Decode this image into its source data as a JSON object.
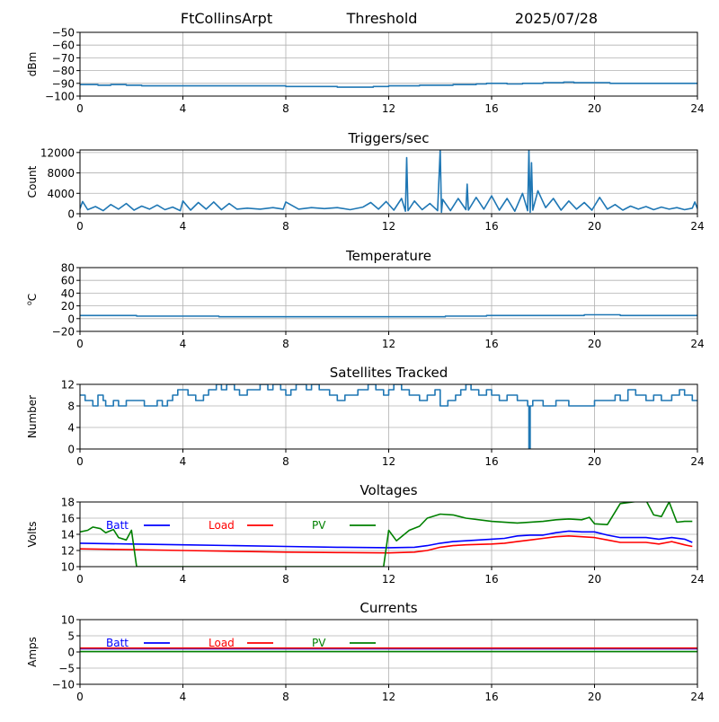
{
  "header": {
    "station": "FtCollinsArpt",
    "threshold_label": "Threshold",
    "date": "2025/07/28"
  },
  "chart_data": [
    {
      "id": "threshold",
      "type": "line",
      "title": "",
      "xlabel": "",
      "ylabel": "dBm",
      "xlim": [
        0,
        24
      ],
      "ylim": [
        -100,
        -50
      ],
      "xticks": [
        0,
        4,
        8,
        12,
        16,
        20,
        24
      ],
      "yticks": [
        -50,
        -60,
        -70,
        -80,
        -90,
        -100
      ],
      "grid": true,
      "series": [
        {
          "color": "#1f77b4",
          "kind": "step",
          "x": [
            0,
            0.7,
            1.2,
            1.8,
            2.4,
            3.0,
            4.0,
            5.0,
            6.0,
            7.0,
            8.0,
            9.0,
            10.0,
            10.6,
            11.4,
            12.0,
            12.6,
            13.2,
            14.0,
            14.5,
            15.0,
            15.4,
            15.8,
            16.2,
            16.6,
            17.2,
            17.6,
            18.0,
            18.4,
            18.8,
            19.2,
            19.6,
            20.0,
            20.6,
            21.0,
            22.0,
            23.0,
            24.0
          ],
          "y": [
            -91,
            -91.5,
            -91,
            -91.5,
            -92,
            -92,
            -92,
            -92,
            -92,
            -92,
            -92.5,
            -92.5,
            -93,
            -93,
            -92.5,
            -92,
            -92,
            -91.5,
            -91.5,
            -91,
            -91,
            -90.5,
            -90,
            -90,
            -90.5,
            -90,
            -90,
            -89.5,
            -89.5,
            -89,
            -89.5,
            -89.5,
            -89.5,
            -90,
            -90,
            -90,
            -90,
            -90
          ]
        }
      ]
    },
    {
      "id": "triggers",
      "type": "line",
      "title": "Triggers/sec",
      "xlabel": "",
      "ylabel": "Count",
      "xlim": [
        0,
        24
      ],
      "ylim": [
        0,
        12500
      ],
      "xticks": [
        0,
        4,
        8,
        12,
        16,
        20,
        24
      ],
      "yticks": [
        0,
        4000,
        8000,
        12000
      ],
      "grid": true,
      "series": [
        {
          "color": "#1f77b4",
          "kind": "line",
          "x": [
            0,
            0.1,
            0.3,
            0.6,
            0.9,
            1.2,
            1.5,
            1.8,
            2.1,
            2.4,
            2.7,
            3.0,
            3.3,
            3.6,
            3.9,
            4.0,
            4.3,
            4.6,
            4.9,
            5.2,
            5.5,
            5.8,
            6.1,
            6.5,
            7.0,
            7.5,
            7.9,
            8.0,
            8.5,
            9.0,
            9.5,
            10.0,
            10.5,
            11.0,
            11.3,
            11.6,
            11.9,
            12.2,
            12.5,
            12.65,
            12.7,
            12.75,
            13.0,
            13.3,
            13.6,
            13.9,
            14.0,
            14.05,
            14.1,
            14.4,
            14.7,
            15.0,
            15.05,
            15.1,
            15.4,
            15.7,
            16.0,
            16.3,
            16.6,
            16.9,
            17.2,
            17.4,
            17.45,
            17.5,
            17.55,
            17.6,
            17.8,
            18.1,
            18.4,
            18.7,
            19.0,
            19.3,
            19.6,
            19.9,
            20.2,
            20.5,
            20.8,
            21.1,
            21.4,
            21.7,
            22.0,
            22.3,
            22.6,
            22.9,
            23.2,
            23.5,
            23.8,
            23.9,
            24.0
          ],
          "y": [
            1000,
            2400,
            800,
            1400,
            600,
            1800,
            900,
            2000,
            700,
            1500,
            900,
            1700,
            800,
            1300,
            600,
            2500,
            700,
            2200,
            900,
            2300,
            800,
            2000,
            900,
            1100,
            900,
            1200,
            900,
            2300,
            900,
            1200,
            1000,
            1200,
            800,
            1300,
            2200,
            900,
            2400,
            700,
            3000,
            500,
            11000,
            600,
            2500,
            800,
            2000,
            600,
            12600,
            300,
            2800,
            600,
            3000,
            800,
            5800,
            700,
            3200,
            900,
            3500,
            700,
            3000,
            500,
            4000,
            600,
            12600,
            300,
            10000,
            700,
            4500,
            1200,
            3000,
            700,
            2500,
            900,
            2200,
            700,
            3200,
            900,
            1800,
            700,
            1500,
            900,
            1400,
            800,
            1300,
            900,
            1200,
            800,
            1100,
            2300,
            1000
          ]
        }
      ]
    },
    {
      "id": "temperature",
      "type": "line",
      "title": "Temperature",
      "xlabel": "",
      "ylabel": "oC",
      "xlim": [
        0,
        24
      ],
      "ylim": [
        -20,
        80
      ],
      "xticks": [
        0,
        4,
        8,
        12,
        16,
        20,
        24
      ],
      "yticks": [
        -20,
        0,
        20,
        40,
        60,
        80
      ],
      "grid": true,
      "series": [
        {
          "color": "#1f77b4",
          "kind": "step",
          "x": [
            0,
            2.2,
            5.4,
            14.2,
            15.8,
            19.6,
            21.0,
            24.0
          ],
          "y": [
            5,
            4,
            3,
            4,
            5,
            6,
            5,
            5
          ]
        }
      ]
    },
    {
      "id": "satellites",
      "type": "line",
      "title": "Satellites Tracked",
      "xlabel": "",
      "ylabel": "Number",
      "xlim": [
        0,
        24
      ],
      "ylim": [
        0,
        12
      ],
      "xticks": [
        0,
        4,
        8,
        12,
        16,
        20,
        24
      ],
      "yticks": [
        0,
        4,
        8,
        12
      ],
      "grid": true,
      "series": [
        {
          "color": "#1f77b4",
          "kind": "step",
          "x": [
            0,
            0.2,
            0.5,
            0.7,
            0.9,
            1.0,
            1.3,
            1.5,
            1.8,
            2.0,
            2.5,
            2.8,
            3.0,
            3.2,
            3.4,
            3.6,
            3.8,
            4.2,
            4.5,
            4.8,
            5.0,
            5.3,
            5.5,
            5.7,
            6.0,
            6.2,
            6.5,
            7.0,
            7.3,
            7.5,
            7.8,
            8.0,
            8.2,
            8.4,
            8.8,
            9.0,
            9.3,
            9.7,
            10.0,
            10.3,
            10.8,
            11.2,
            11.5,
            11.8,
            12.0,
            12.2,
            12.5,
            12.8,
            13.2,
            13.5,
            13.8,
            14.0,
            14.3,
            14.6,
            14.8,
            15.0,
            15.2,
            15.5,
            15.8,
            16.0,
            16.3,
            16.6,
            17.0,
            17.4,
            17.45,
            17.5,
            17.6,
            18.0,
            18.5,
            19.0,
            19.5,
            20.0,
            20.5,
            20.8,
            21.0,
            21.3,
            21.6,
            22.0,
            22.3,
            22.6,
            23.0,
            23.3,
            23.5,
            23.8,
            24.0
          ],
          "y": [
            10,
            9,
            8,
            10,
            9,
            8,
            9,
            8,
            9,
            9,
            8,
            8,
            9,
            8,
            9,
            10,
            11,
            10,
            9,
            10,
            11,
            12,
            11,
            12,
            11,
            10,
            11,
            12,
            11,
            12,
            11,
            10,
            11,
            12,
            11,
            12,
            11,
            10,
            9,
            10,
            11,
            12,
            11,
            10,
            11,
            12,
            11,
            10,
            9,
            10,
            11,
            8,
            9,
            10,
            11,
            12,
            11,
            10,
            11,
            10,
            9,
            10,
            9,
            8,
            0,
            8,
            9,
            8,
            9,
            8,
            8,
            9,
            9,
            10,
            9,
            11,
            10,
            9,
            10,
            9,
            10,
            11,
            10,
            9,
            9
          ]
        }
      ]
    },
    {
      "id": "voltages",
      "type": "line",
      "title": "Voltages",
      "xlabel": "",
      "ylabel": "Volts",
      "xlim": [
        0,
        24
      ],
      "ylim": [
        10,
        18
      ],
      "xticks": [
        0,
        4,
        8,
        12,
        16,
        20,
        24
      ],
      "yticks": [
        10,
        12,
        14,
        16,
        18
      ],
      "grid": true,
      "legend": "inline-top-left",
      "series": [
        {
          "name": "Batt",
          "color": "#0000ff",
          "kind": "line",
          "x": [
            0,
            2,
            4,
            6,
            8,
            10,
            12,
            13,
            13.5,
            14,
            14.5,
            15,
            16,
            16.5,
            17,
            17.5,
            18,
            18.5,
            19,
            19.5,
            20,
            20.5,
            21,
            22,
            22.5,
            23,
            23.5,
            23.8
          ],
          "y": [
            12.9,
            12.8,
            12.7,
            12.6,
            12.5,
            12.4,
            12.35,
            12.4,
            12.6,
            12.9,
            13.1,
            13.2,
            13.4,
            13.5,
            13.8,
            13.9,
            13.9,
            14.2,
            14.4,
            14.3,
            14.3,
            13.9,
            13.6,
            13.6,
            13.4,
            13.6,
            13.4,
            13.0
          ]
        },
        {
          "name": "Load",
          "color": "#ff0000",
          "kind": "line",
          "x": [
            0,
            2,
            4,
            6,
            8,
            10,
            12,
            13,
            13.5,
            14,
            14.5,
            15,
            16,
            16.5,
            17,
            17.5,
            18,
            18.5,
            19,
            19.5,
            20,
            20.5,
            21,
            22,
            22.5,
            23,
            23.5,
            23.8
          ],
          "y": [
            12.2,
            12.1,
            12.0,
            11.9,
            11.8,
            11.75,
            11.7,
            11.8,
            12.0,
            12.4,
            12.6,
            12.7,
            12.8,
            12.9,
            13.1,
            13.3,
            13.5,
            13.7,
            13.8,
            13.7,
            13.6,
            13.3,
            13.0,
            13.0,
            12.8,
            13.1,
            12.7,
            12.5
          ]
        },
        {
          "name": "PV",
          "color": "#008000",
          "kind": "line",
          "x": [
            0,
            0.3,
            0.5,
            0.8,
            1.0,
            1.3,
            1.5,
            1.8,
            2.0,
            2.2,
            11.8,
            12.0,
            12.3,
            12.8,
            13.2,
            13.5,
            14.0,
            14.5,
            15.0,
            16.0,
            17.0,
            18.0,
            18.5,
            19.0,
            19.5,
            19.8,
            20.0,
            20.5,
            21.0,
            21.5,
            22.0,
            22.3,
            22.6,
            22.9,
            23.2,
            23.5,
            23.8
          ],
          "y": [
            14.3,
            14.5,
            14.9,
            14.7,
            14.2,
            14.6,
            13.6,
            13.3,
            14.5,
            10.0,
            10.0,
            14.5,
            13.2,
            14.5,
            15.0,
            16.0,
            16.5,
            16.4,
            16.0,
            15.6,
            15.4,
            15.6,
            15.8,
            15.9,
            15.8,
            16.1,
            15.3,
            15.2,
            17.8,
            18.0,
            18.2,
            16.4,
            16.2,
            18.0,
            15.5,
            15.6,
            15.6
          ]
        }
      ]
    },
    {
      "id": "currents",
      "type": "line",
      "title": "Currents",
      "xlabel": "",
      "ylabel": "Amps",
      "xlim": [
        0,
        24
      ],
      "ylim": [
        -10,
        10
      ],
      "xticks": [
        0,
        4,
        8,
        12,
        16,
        20,
        24
      ],
      "yticks": [
        -10,
        -5,
        0,
        5,
        10
      ],
      "grid": true,
      "legend": "inline-top-left",
      "series": [
        {
          "name": "Batt",
          "color": "#0000ff",
          "kind": "line",
          "x": [
            0,
            24
          ],
          "y": [
            1.0,
            1.0
          ]
        },
        {
          "name": "Load",
          "color": "#ff0000",
          "kind": "line",
          "x": [
            0,
            24
          ],
          "y": [
            1.2,
            1.2
          ]
        },
        {
          "name": "PV",
          "color": "#008000",
          "kind": "line",
          "x": [
            0,
            24
          ],
          "y": [
            0.1,
            0.1
          ]
        }
      ]
    }
  ]
}
